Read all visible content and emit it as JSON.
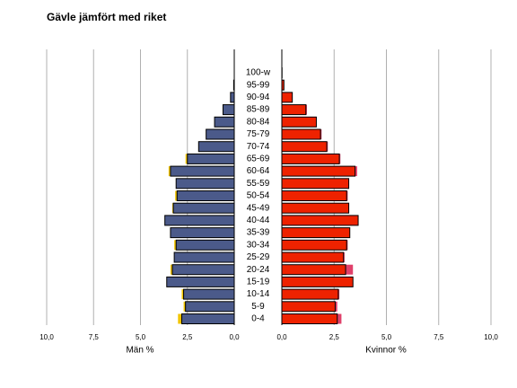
{
  "chart_data": {
    "type": "pyramid",
    "title": "Gävle jämfört med riket",
    "categories": [
      "0-4",
      "5-9",
      "10-14",
      "15-19",
      "20-24",
      "25-29",
      "30-34",
      "35-39",
      "40-44",
      "45-49",
      "50-54",
      "55-59",
      "60-64",
      "65-69",
      "70-74",
      "75-79",
      "80-84",
      "85-89",
      "90-94",
      "95-99",
      "100-w"
    ],
    "grid": true,
    "left": {
      "xlabel": "Män %",
      "xlim": [
        10,
        0
      ],
      "xticks": [
        {
          "value": 10,
          "label": "10,0"
        },
        {
          "value": 7.5,
          "label": "7,5"
        },
        {
          "value": 5,
          "label": "5,0"
        },
        {
          "value": 2.5,
          "label": "2,5"
        },
        {
          "value": 0,
          "label": "0,0"
        }
      ],
      "series": [
        {
          "color": "#f2c500",
          "values": [
            3.0,
            2.7,
            2.8,
            3.4,
            3.4,
            3.2,
            3.2,
            3.35,
            3.65,
            3.3,
            3.15,
            3.1,
            3.5,
            2.6,
            1.9,
            1.45,
            1.0,
            0.55,
            0.2,
            0.03,
            0
          ]
        },
        {
          "color": "#4b5a8a",
          "values": [
            2.8,
            2.6,
            2.7,
            3.6,
            3.3,
            3.2,
            3.1,
            3.4,
            3.7,
            3.25,
            3.05,
            3.1,
            3.4,
            2.5,
            1.9,
            1.5,
            1.05,
            0.6,
            0.2,
            0.03,
            0
          ]
        }
      ]
    },
    "right": {
      "xlabel": "Kvinnor %",
      "xlim": [
        0,
        10
      ],
      "xticks": [
        {
          "value": 0,
          "label": "0,0"
        },
        {
          "value": 2.5,
          "label": "2,5"
        },
        {
          "value": 5,
          "label": "5,0"
        },
        {
          "value": 7.5,
          "label": "7,5"
        },
        {
          "value": 10,
          "label": "10,0"
        }
      ],
      "series": [
        {
          "color": "#e0406a",
          "values": [
            2.85,
            2.65,
            2.75,
            3.3,
            3.4,
            3.0,
            3.15,
            3.25,
            3.6,
            3.2,
            3.15,
            3.15,
            3.6,
            2.8,
            2.2,
            1.9,
            1.65,
            1.2,
            0.5,
            0.1,
            0.01
          ]
        },
        {
          "color": "#ee2200",
          "values": [
            2.65,
            2.55,
            2.7,
            3.4,
            3.05,
            2.95,
            3.1,
            3.25,
            3.65,
            3.2,
            3.1,
            3.2,
            3.5,
            2.75,
            2.15,
            1.85,
            1.65,
            1.15,
            0.5,
            0.1,
            0.01
          ]
        }
      ]
    }
  }
}
